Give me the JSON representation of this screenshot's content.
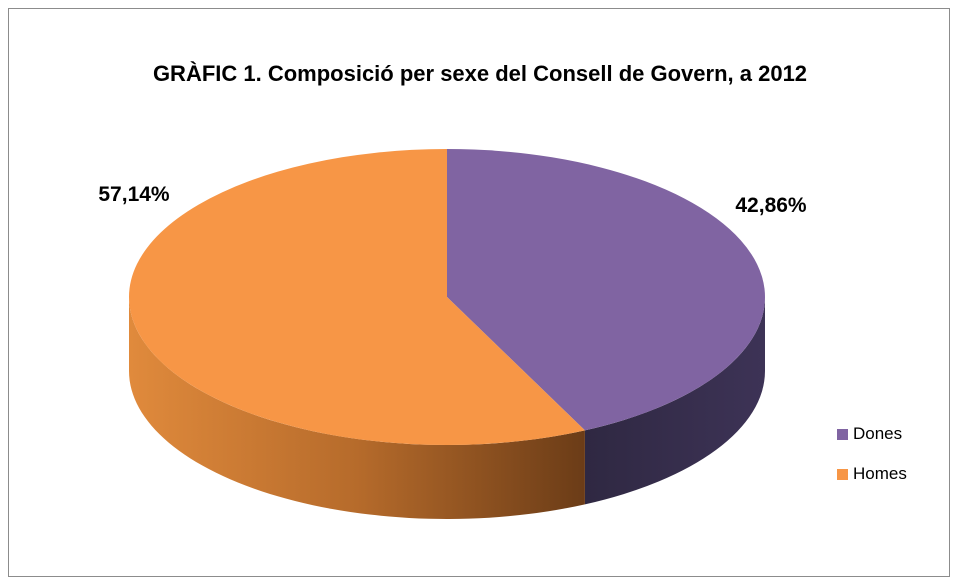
{
  "chart_data": {
    "type": "pie",
    "title": "GRÀFIC 1. Composició per sexe del Consell de Govern, a 2012",
    "slices": [
      {
        "name": "Dones",
        "value": 42.86,
        "label": "42,86%",
        "color": "#8064a2",
        "side_color": "#2e2540"
      },
      {
        "name": "Homes",
        "value": 57.14,
        "label": "57,14%",
        "color": "#f79646",
        "side_color": "#b8682a"
      }
    ],
    "legend_position": "right",
    "style": "3d"
  }
}
